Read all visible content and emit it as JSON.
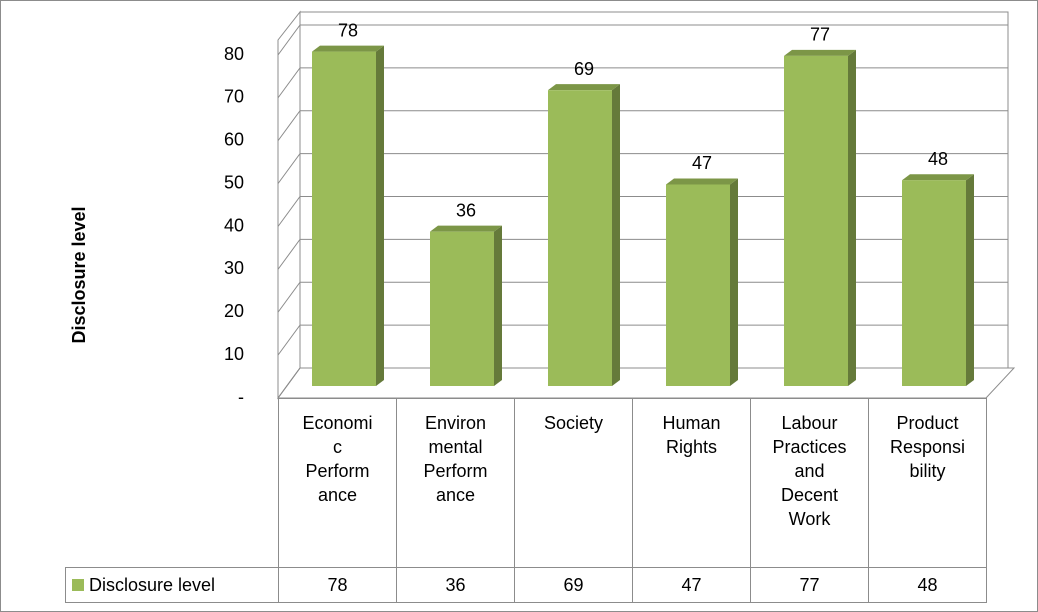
{
  "chart_data": {
    "type": "bar3d",
    "y_axis_label": "Disclosure level",
    "categories": [
      "Economi\nc\nPerform\nance",
      "Environ\nmental\nPerform\nance",
      "Society",
      "Human\nRights",
      "Labour\nPractices\nand\nDecent\nWork",
      "Product\nResponsi\nbility"
    ],
    "series": [
      {
        "name": "Disclosure level",
        "color": "#9bbb59",
        "values": [
          78,
          36,
          69,
          47,
          77,
          48
        ]
      }
    ],
    "ylim": [
      0,
      80
    ],
    "yticks": [
      {
        "value": 0,
        "label": "-"
      },
      10,
      20,
      30,
      40,
      50,
      60,
      70,
      80
    ],
    "grid": true,
    "data_table": true
  }
}
